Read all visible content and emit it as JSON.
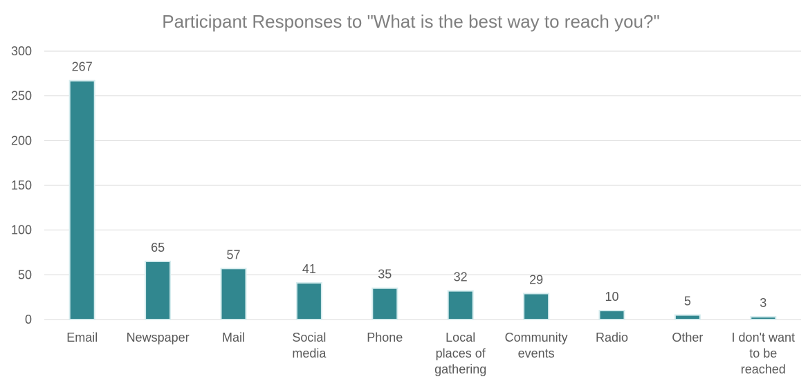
{
  "chart_data": {
    "type": "bar",
    "title": "Participant Responses to \"What is the best way to reach you?\"",
    "xlabel": "",
    "ylabel": "",
    "categories": [
      "Email",
      "Newspaper",
      "Mail",
      "Social media",
      "Phone",
      "Local places of gathering",
      "Community events",
      "Radio",
      "Other",
      "I don't want to be reached"
    ],
    "category_lines": [
      [
        "Email"
      ],
      [
        "Newspaper"
      ],
      [
        "Mail"
      ],
      [
        "Social",
        "media"
      ],
      [
        "Phone"
      ],
      [
        "Local",
        "places of",
        "gathering"
      ],
      [
        "Community",
        "events"
      ],
      [
        "Radio"
      ],
      [
        "Other"
      ],
      [
        "I don't want",
        "to be",
        "reached"
      ]
    ],
    "values": [
      267,
      65,
      57,
      41,
      35,
      32,
      29,
      10,
      5,
      3
    ],
    "ylim": [
      0,
      300
    ],
    "yticks": [
      0,
      50,
      100,
      150,
      200,
      250,
      300
    ],
    "grid": true,
    "legend": "none",
    "data_labels": true,
    "bar_color": "#31878f",
    "bar_edge_color": "#d6ecee"
  }
}
